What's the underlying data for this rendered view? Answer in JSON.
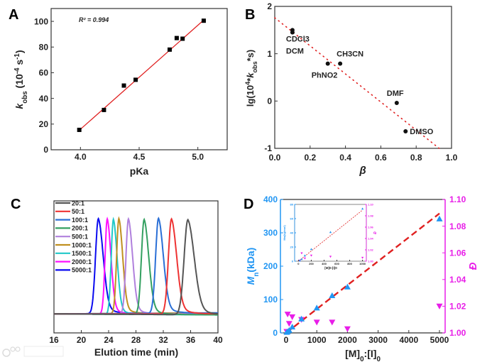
{
  "watermark": "大数跨境",
  "chart_data": [
    {
      "panel": "A",
      "type": "scatter",
      "xlabel": "pKa",
      "ylabel_parts": [
        [
          "k",
          "i"
        ],
        [
          "obs",
          "sub"
        ],
        [
          " (10",
          ""
        ],
        [
          "-4",
          "sup"
        ],
        [
          " s",
          ""
        ],
        [
          "-1",
          "sup"
        ],
        [
          ")",
          ""
        ]
      ],
      "xlim": [
        3.75,
        5.25
      ],
      "ylim": [
        0,
        110
      ],
      "xticks": [
        4.0,
        4.5,
        5.0
      ],
      "xtick_labels": [
        "4.0",
        "4.5",
        "5.0"
      ],
      "yticks": [
        0,
        20,
        40,
        60,
        80,
        100
      ],
      "ytick_labels": [
        "0",
        "20",
        "40",
        "60",
        "80",
        "100"
      ],
      "annotation": "R² = 0.994",
      "series": [
        {
          "name": "data",
          "marker": "square",
          "color": "#000000",
          "x": [
            3.99,
            4.2,
            4.37,
            4.47,
            4.76,
            4.82,
            4.87,
            5.05
          ],
          "y": [
            15.5,
            31,
            50,
            54.5,
            78,
            87,
            86.5,
            100.5
          ]
        },
        {
          "name": "linear fit",
          "type": "line",
          "color": "#e02020",
          "x": [
            4.0,
            5.05
          ],
          "y": [
            16,
            101
          ]
        }
      ],
      "grid": false
    },
    {
      "panel": "B",
      "type": "scatter",
      "xlabel": "β",
      "ylabel_parts": [
        [
          "lg(10",
          ""
        ],
        [
          "4",
          "sup"
        ],
        [
          "*",
          ""
        ],
        [
          "k",
          "i"
        ],
        [
          "obs",
          "sub"
        ],
        [
          "*s)",
          ""
        ]
      ],
      "xlim": [
        0,
        1
      ],
      "ylim": [
        -1,
        2
      ],
      "xticks": [
        0,
        0.2,
        0.4,
        0.6,
        0.8,
        1.0
      ],
      "xtick_labels": [
        "0.0",
        "0.2",
        "0.4",
        "0.6",
        "0.8",
        "1.0"
      ],
      "yticks": [
        -1,
        0,
        1,
        2
      ],
      "ytick_labels": [
        "-1",
        "0",
        "1",
        "2"
      ],
      "points": [
        {
          "label": "CDCl3",
          "label_parts": [
            [
              "CDCl",
              ""
            ],
            [
              "3",
              "sub"
            ]
          ],
          "x": 0.1,
          "y": 1.5
        },
        {
          "label": "DCM",
          "label_parts": [
            [
              "DCM",
              ""
            ]
          ],
          "x": 0.1,
          "y": 1.45
        },
        {
          "label": "PhNO2",
          "label_parts": [
            [
              "PhNO",
              ""
            ],
            [
              "2",
              "sub"
            ]
          ],
          "x": 0.3,
          "y": 0.79
        },
        {
          "label": "CH3CN",
          "label_parts": [
            [
              "CH",
              ""
            ],
            [
              "3",
              "sub"
            ],
            [
              "CN",
              ""
            ]
          ],
          "x": 0.37,
          "y": 0.79
        },
        {
          "label": "DMF",
          "label_parts": [
            [
              "DMF",
              ""
            ]
          ],
          "x": 0.69,
          "y": -0.04
        },
        {
          "label": "DMSO",
          "label_parts": [
            [
              "DMSO",
              ""
            ]
          ],
          "x": 0.74,
          "y": -0.64
        }
      ],
      "fit": {
        "color": "#e02020",
        "style": "dotted",
        "x": [
          0,
          0.93
        ],
        "y": [
          1.76,
          -1.0
        ]
      },
      "grid": false
    },
    {
      "panel": "C",
      "type": "line",
      "xlabel": "Elution time (min)",
      "xlim": [
        16,
        40
      ],
      "ylim": [
        -0.2,
        1.19
      ],
      "xticks": [
        16,
        20,
        24,
        28,
        32,
        36,
        40
      ],
      "xtick_labels": [
        "16",
        "20",
        "24",
        "28",
        "32",
        "36",
        "40"
      ],
      "legend_position": "top-left",
      "series": [
        {
          "name": "20:1",
          "color": "#555555",
          "peak_time": 35.6,
          "width": 0.55
        },
        {
          "name": "50:1",
          "color": "#ee3333",
          "peak_time": 33.2,
          "width": 0.45
        },
        {
          "name": "100:1",
          "color": "#2a6fd6",
          "peak_time": 31.3,
          "width": 0.42
        },
        {
          "name": "200:1",
          "color": "#33a060",
          "peak_time": 29.2,
          "width": 0.4
        },
        {
          "name": "500:1",
          "color": "#b080dd",
          "peak_time": 26.9,
          "width": 0.36
        },
        {
          "name": "1000:1",
          "color": "#c09020",
          "peak_time": 25.5,
          "width": 0.33
        },
        {
          "name": "1500:1",
          "color": "#20c8c8",
          "peak_time": 24.7,
          "width": 0.32
        },
        {
          "name": "2000:1",
          "color": "#ff10ff",
          "peak_time": 23.8,
          "width": 0.32
        },
        {
          "name": "5000:1",
          "color": "#0a0af0",
          "peak_time": 22.5,
          "width": 0.42
        }
      ],
      "grid": false
    },
    {
      "panel": "D",
      "type": "scatter",
      "xlabel_parts": [
        [
          "[M]",
          ""
        ],
        [
          "0",
          "sub"
        ],
        [
          ":[I]",
          ""
        ],
        [
          "0",
          "sub"
        ]
      ],
      "ylabel_parts": [
        [
          "M",
          "i"
        ],
        [
          "n",
          "sub"
        ],
        [
          "(kDa)",
          ""
        ]
      ],
      "y2label": "Đ",
      "xlim": [
        -185,
        5185
      ],
      "ylim": [
        0,
        400
      ],
      "y2lim": [
        1.0,
        1.1
      ],
      "xticks": [
        0,
        1000,
        2000,
        3000,
        4000,
        5000
      ],
      "xtick_labels": [
        "0",
        "1000",
        "2000",
        "3000",
        "4000",
        "5000"
      ],
      "yticks": [
        0,
        100,
        200,
        300,
        400
      ],
      "ytick_labels": [
        "0",
        "100",
        "200",
        "300",
        "400"
      ],
      "y2ticks": [
        1.0,
        1.02,
        1.04,
        1.06,
        1.08,
        1.1
      ],
      "y2tick_labels": [
        "1.00",
        "1.02",
        "1.04",
        "1.06",
        "1.08",
        "1.10"
      ],
      "colors": {
        "mn": "#2196f3",
        "dispersity": "#e81ee8",
        "fit": "#e02020"
      },
      "series": [
        {
          "name": "Mn",
          "marker": "triangle-up",
          "axis": "left",
          "x": [
            20,
            50,
            100,
            200,
            500,
            1000,
            1500,
            2000,
            5000
          ],
          "y": [
            2,
            4,
            8,
            18,
            42,
            75,
            112,
            138,
            342
          ]
        },
        {
          "name": "Đ",
          "marker": "triangle-down",
          "axis": "right",
          "x": [
            20,
            50,
            100,
            200,
            500,
            1000,
            1500,
            2000,
            5000
          ],
          "y": [
            1.001,
            1.014,
            1.007,
            1.012,
            1.01,
            1.008,
            1.008,
            1.003,
            1.02
          ]
        },
        {
          "name": "fit",
          "type": "line",
          "style": "dashed",
          "x": [
            0,
            5000
          ],
          "y": [
            0,
            358
          ]
        }
      ],
      "inset": {
        "xlabel": "[M]0:[I]0",
        "ylabel": "Mn(kg/mol)",
        "y2label": "Đ",
        "xlim": [
          -60,
          1060
        ],
        "ylim": [
          0,
          80
        ],
        "y2lim": [
          1.0,
          1.1
        ],
        "xticks": [
          0,
          200,
          400,
          600,
          800,
          1000
        ],
        "xtick_labels": [
          "0",
          "200",
          "400",
          "600",
          "800",
          "1000"
        ],
        "yticks": [
          0,
          20,
          40,
          60,
          80
        ],
        "ytick_labels": [
          "0",
          "20",
          "40",
          "60",
          "80"
        ],
        "y2ticks": [
          1.0,
          1.02,
          1.04,
          1.06,
          1.08,
          1.1
        ],
        "y2tick_labels": [
          "1.00",
          "1.02",
          "1.04",
          "1.06",
          "1.08",
          "1.10"
        ],
        "mn": {
          "x": [
            20,
            50,
            100,
            200,
            500,
            1000
          ],
          "y": [
            1,
            3,
            8,
            17,
            41,
            74
          ]
        },
        "dispersity": {
          "x": [
            20,
            50,
            100,
            200,
            500,
            1000
          ],
          "y": [
            1.001,
            1.014,
            1.005,
            1.01,
            1.008,
            1.006
          ]
        },
        "fit": {
          "x": [
            0,
            1000
          ],
          "y": [
            0,
            72
          ]
        }
      },
      "grid": false
    }
  ],
  "panel_labels": [
    "A",
    "B",
    "C",
    "D"
  ]
}
